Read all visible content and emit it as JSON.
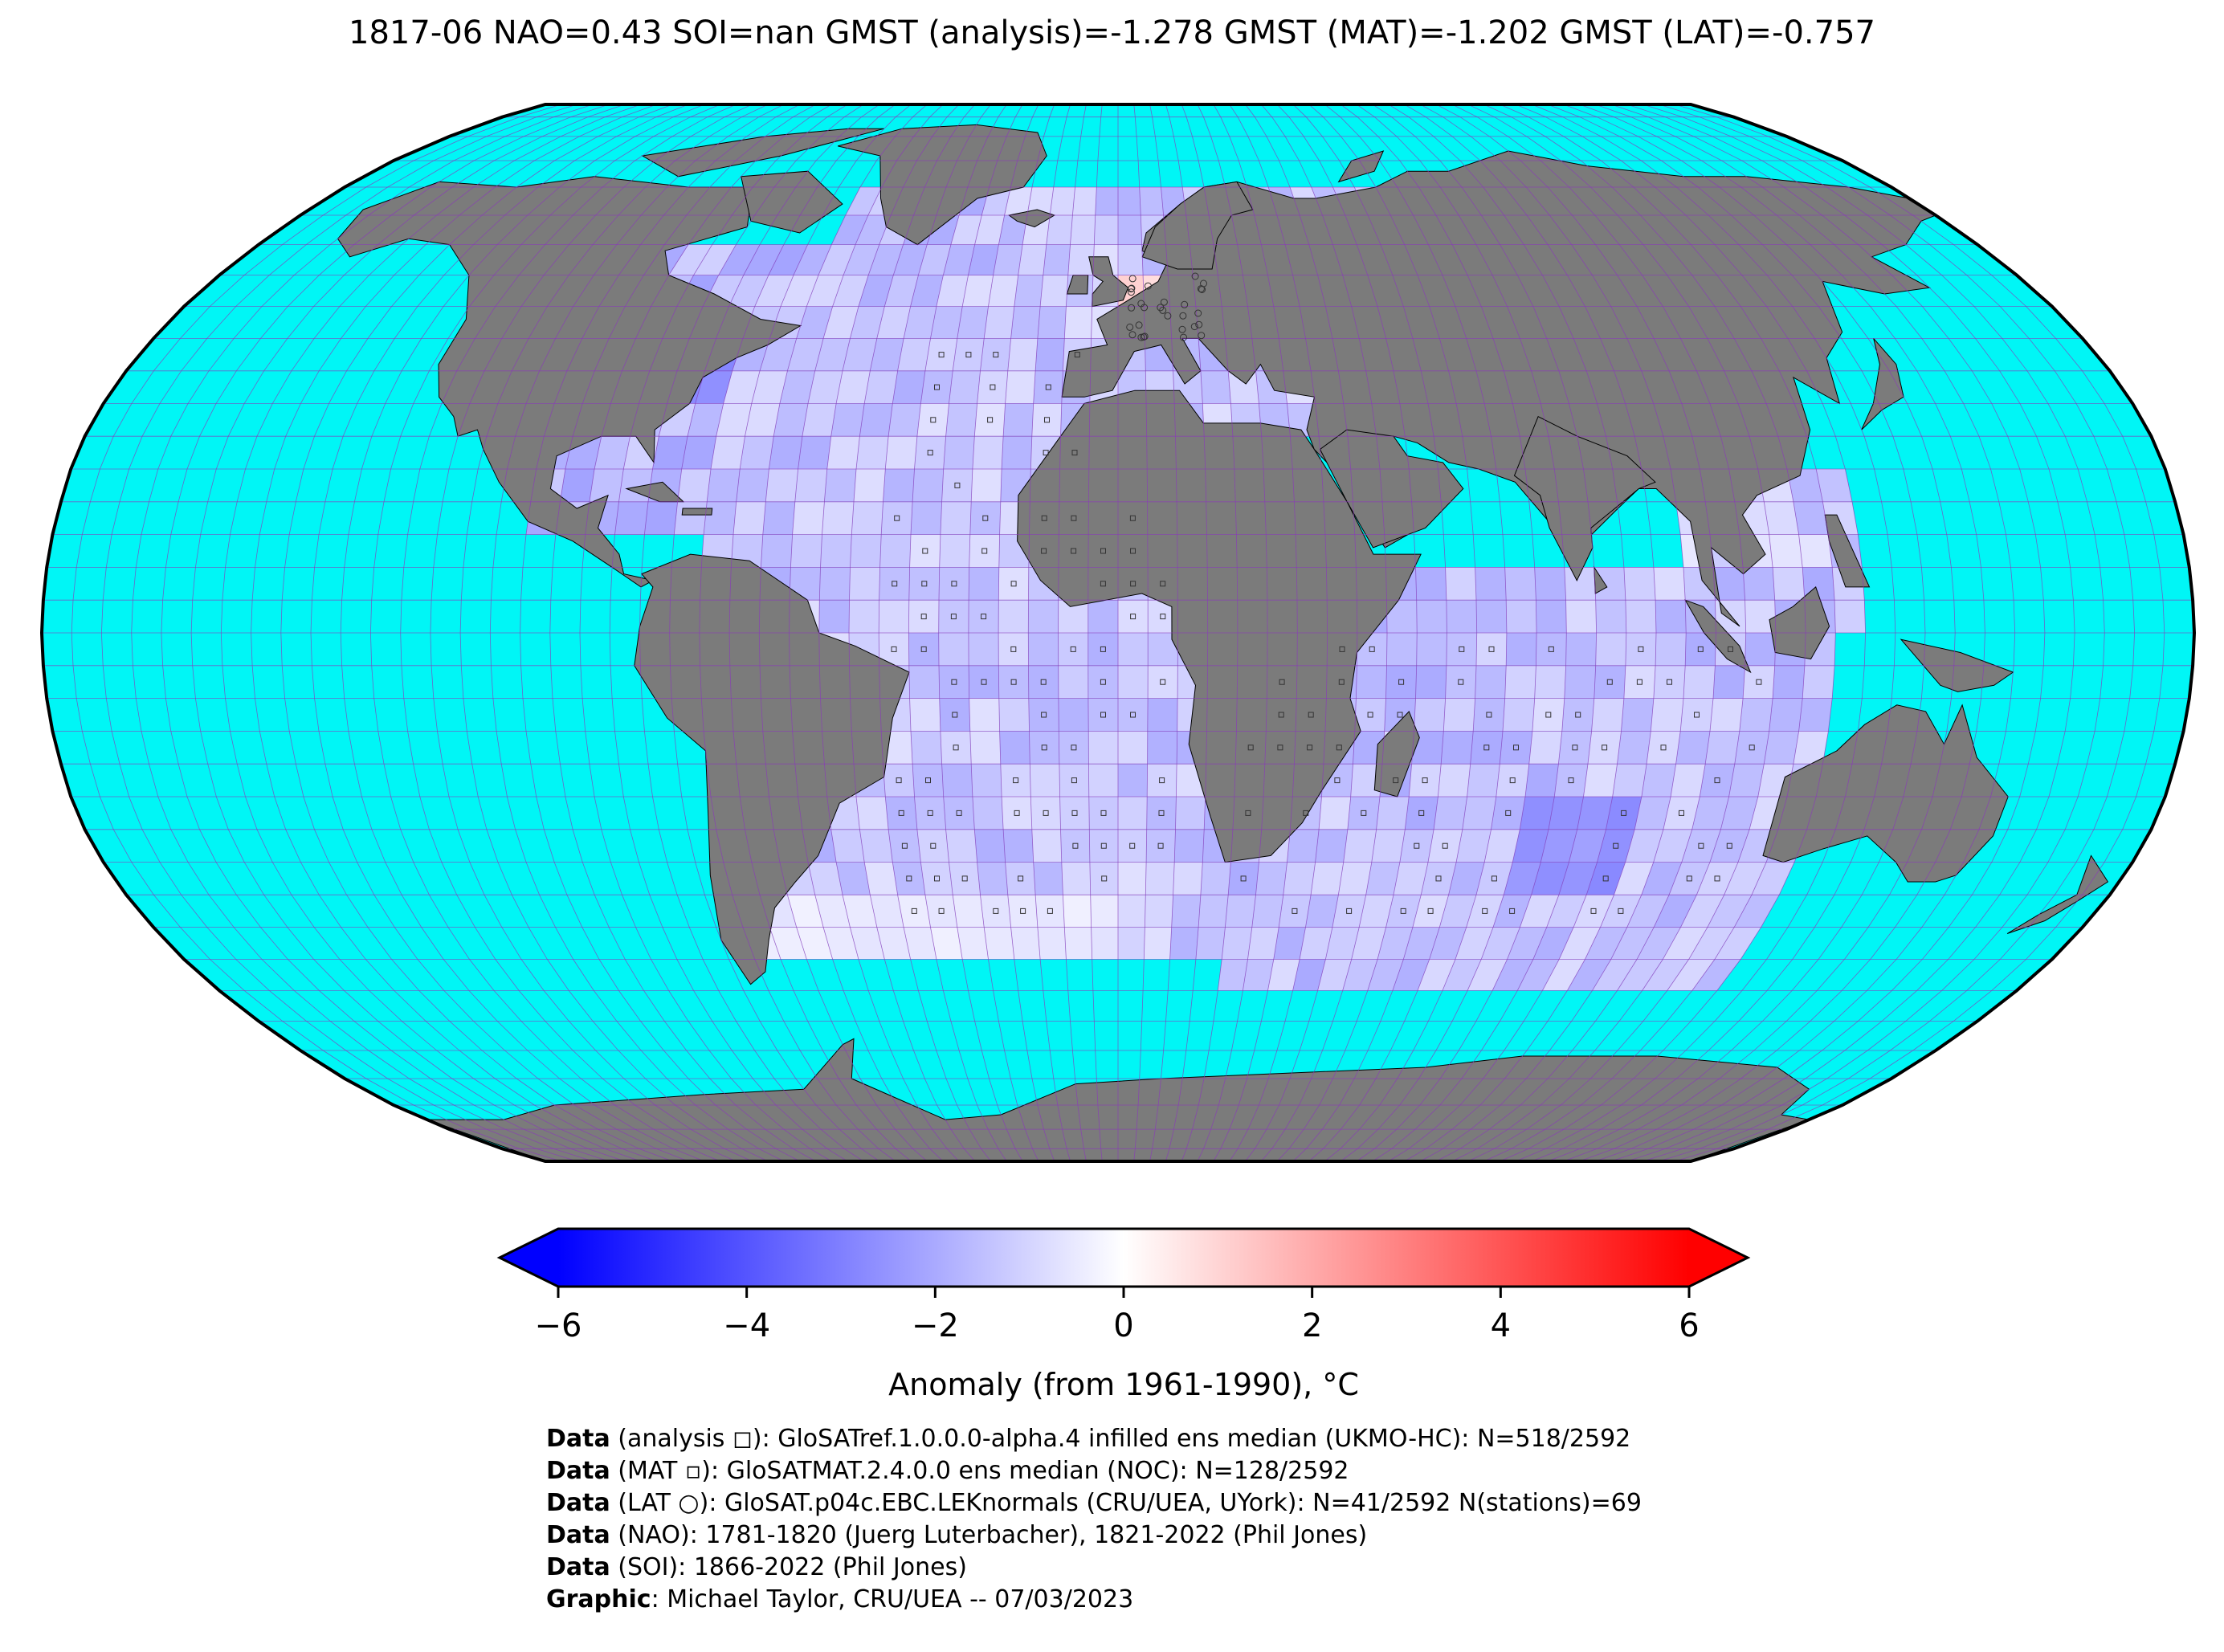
{
  "title": "1817-06 NAO=0.43 SOI=nan GMST (analysis)=-1.278 GMST (MAT)=-1.202 GMST (LAT)=-0.757",
  "colors": {
    "ocean": "#00f6f6",
    "land": "#7b7b7b",
    "grid": "#8a3ab9",
    "outline": "#000000",
    "cmap_low": "#0000ff",
    "cmap_mid": "#ffffff",
    "cmap_high": "#ff0000"
  },
  "colorbar": {
    "ticks": [
      "−6",
      "−4",
      "−2",
      "0",
      "2",
      "4",
      "6"
    ],
    "tick_values": [
      -6,
      -4,
      -2,
      0,
      2,
      4,
      6
    ],
    "range": [
      -6,
      6
    ],
    "label": "Anomaly (from 1961-1990), °C",
    "extend": "both"
  },
  "credits": [
    {
      "key": "Data",
      "text": " (analysis ◻): GloSATref.1.0.0.0-alpha.4 infilled ens median (UKMO-HC): N=518/2592"
    },
    {
      "key": "Data",
      "text": " (MAT ▫): GloSATMAT.2.4.0.0 ens median (NOC): N=128/2592"
    },
    {
      "key": "Data",
      "text": " (LAT ○): GloSAT.p04c.EBC.LEKnormals (CRU/UEA, UYork): N=41/2592 N(stations)=69"
    },
    {
      "key": "Data",
      "text": " (NAO): 1781-1820 (Juerg Luterbacher), 1821-2022 (Phil Jones)"
    },
    {
      "key": "Data",
      "text": " (SOI): 1866-2022 (Phil Jones)"
    },
    {
      "key": "Graphic",
      "text": ": Michael Taylor, CRU/UEA -- 07/03/2023"
    }
  ]
}
